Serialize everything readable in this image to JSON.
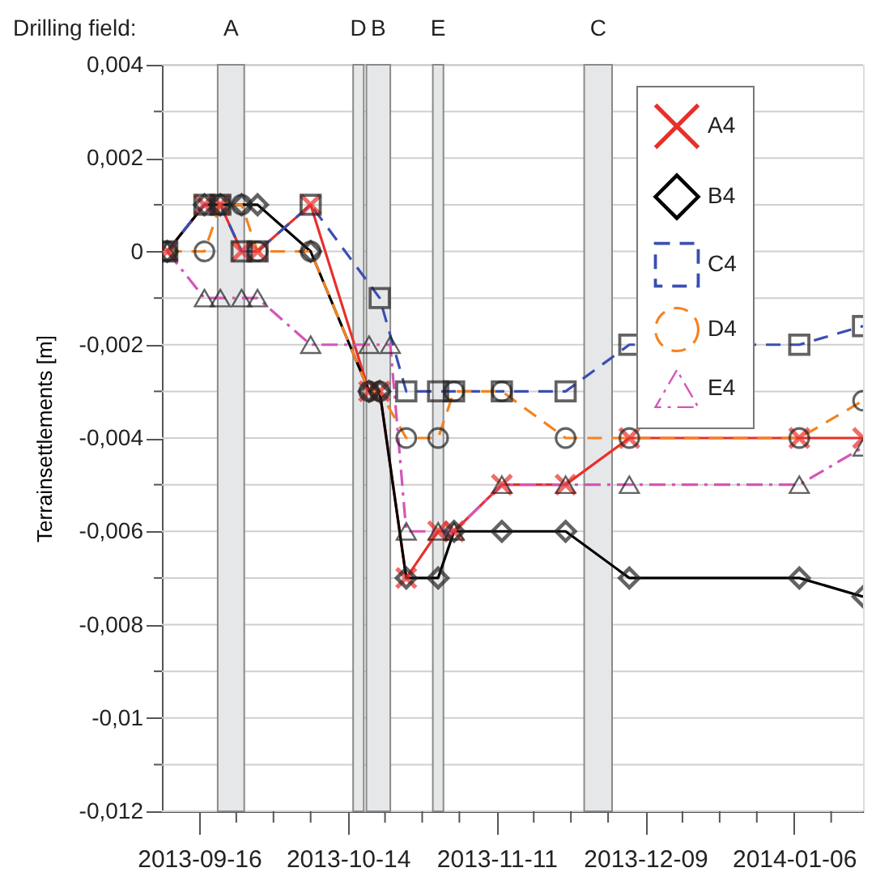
{
  "chart_data": {
    "type": "line",
    "ylabel": "Terrainsettlements [m]",
    "annotations": [
      "Drilling field:"
    ],
    "xlim": [
      "2013-09-09",
      "2014-01-19"
    ],
    "xticks": [
      {
        "value": "2013-09-16",
        "label": "2013-09-16"
      },
      {
        "value": "2013-09-23",
        "label": null
      },
      {
        "value": "2013-09-30",
        "label": null
      },
      {
        "value": "2013-10-07",
        "label": null
      },
      {
        "value": "2013-10-14",
        "label": "2013-10-14"
      },
      {
        "value": "2013-10-21",
        "label": null
      },
      {
        "value": "2013-10-28",
        "label": null
      },
      {
        "value": "2013-11-04",
        "label": null
      },
      {
        "value": "2013-11-11",
        "label": "2013-11-11"
      },
      {
        "value": "2013-11-18",
        "label": null
      },
      {
        "value": "2013-11-25",
        "label": null
      },
      {
        "value": "2013-12-02",
        "label": null
      },
      {
        "value": "2013-12-09",
        "label": "2013-12-09"
      },
      {
        "value": "2013-12-16",
        "label": null
      },
      {
        "value": "2013-12-23",
        "label": null
      },
      {
        "value": "2013-12-30",
        "label": null
      },
      {
        "value": "2014-01-06",
        "label": "2014-01-06"
      },
      {
        "value": "2014-01-13",
        "label": null
      }
    ],
    "ylim": [
      -0.012,
      0.004
    ],
    "yticks": [
      {
        "value": -0.012,
        "label": "-0,012"
      },
      {
        "value": -0.011,
        "label": null
      },
      {
        "value": -0.01,
        "label": "-0,01"
      },
      {
        "value": -0.009,
        "label": null
      },
      {
        "value": -0.008,
        "label": "-0,008"
      },
      {
        "value": -0.007,
        "label": null
      },
      {
        "value": -0.006,
        "label": "-0,006"
      },
      {
        "value": -0.005,
        "label": null
      },
      {
        "value": -0.004,
        "label": "-0,004"
      },
      {
        "value": -0.003,
        "label": null
      },
      {
        "value": -0.002,
        "label": "-0,002"
      },
      {
        "value": -0.001,
        "label": null
      },
      {
        "value": 0,
        "label": "0"
      },
      {
        "value": 0.001,
        "label": null
      },
      {
        "value": 0.002,
        "label": "0,002"
      },
      {
        "value": 0.003,
        "label": null
      },
      {
        "value": 0.004,
        "label": "0,004"
      }
    ],
    "grid": "y",
    "legend": "top right",
    "bands": [
      {
        "axis": "x",
        "from": "2013-09-19T12:00",
        "to": "2013-09-24T12:00",
        "label": "A",
        "color": "#e6e7e8"
      },
      {
        "axis": "x",
        "from": "2013-10-15",
        "to": "2013-10-17",
        "label": "D",
        "color": "#e6e7e8"
      },
      {
        "axis": "x",
        "from": "2013-10-17T12:00",
        "to": "2013-10-22",
        "label": "B",
        "color": "#e6e7e8"
      },
      {
        "axis": "x",
        "from": "2013-10-30",
        "to": "2013-11-01",
        "label": "E",
        "color": "#e6e7e8"
      },
      {
        "axis": "x",
        "from": "2013-11-27T12:00",
        "to": "2013-12-02T18:00",
        "label": "C",
        "color": "#e6e7e8"
      }
    ],
    "series": [
      {
        "name": "A4",
        "color": "#e8302a",
        "marker": "cross",
        "line_style": "solid",
        "x": [
          "2013-09-10",
          "2013-09-17",
          "2013-09-20",
          "2013-09-24",
          "2013-09-27",
          "2013-10-07",
          "2013-10-18",
          "2013-10-20",
          "2013-10-25",
          "2013-10-31",
          "2013-11-03",
          "2013-11-12",
          "2013-11-24",
          "2013-12-06",
          "2014-01-07",
          "2014-01-19"
        ],
        "values": [
          0,
          0.001,
          0.001,
          0,
          0,
          0.001,
          -0.003,
          -0.003,
          -0.007,
          -0.006,
          -0.006,
          -0.005,
          -0.005,
          -0.004,
          -0.004,
          -0.004
        ]
      },
      {
        "name": "B4",
        "color": "#000000",
        "marker": "diamond",
        "line_style": "solid",
        "x": [
          "2013-09-10",
          "2013-09-17",
          "2013-09-20",
          "2013-09-24",
          "2013-09-27",
          "2013-10-07",
          "2013-10-18",
          "2013-10-20",
          "2013-10-25",
          "2013-10-31",
          "2013-11-03",
          "2013-11-12",
          "2013-11-24",
          "2013-12-06",
          "2014-01-07",
          "2014-01-19"
        ],
        "values": [
          0,
          0.001,
          0.001,
          0.001,
          0.001,
          0,
          -0.003,
          -0.003,
          -0.007,
          -0.007,
          -0.006,
          -0.006,
          -0.006,
          -0.007,
          -0.007,
          -0.0074
        ]
      },
      {
        "name": "C4",
        "color": "#3a4fb0",
        "marker": "square",
        "line_style": "dashed",
        "x": [
          "2013-09-10",
          "2013-09-17",
          "2013-09-20",
          "2013-09-24",
          "2013-09-27",
          "2013-10-07",
          "2013-10-20",
          "2013-10-25",
          "2013-10-31",
          "2013-11-03",
          "2013-11-12",
          "2013-11-24",
          "2013-12-06",
          "2014-01-07",
          "2014-01-19"
        ],
        "values": [
          0,
          0.001,
          0.001,
          0,
          0,
          0.001,
          -0.001,
          -0.003,
          -0.003,
          -0.003,
          -0.003,
          -0.003,
          -0.002,
          -0.002,
          -0.0016
        ]
      },
      {
        "name": "D4",
        "color": "#f5821f",
        "marker": "circle",
        "line_style": "dashed",
        "x": [
          "2013-09-10",
          "2013-09-17",
          "2013-09-20",
          "2013-09-24",
          "2013-09-27",
          "2013-10-07",
          "2013-10-18",
          "2013-10-20",
          "2013-10-25",
          "2013-10-31",
          "2013-11-03",
          "2013-11-12",
          "2013-11-24",
          "2013-12-06",
          "2014-01-07",
          "2014-01-19"
        ],
        "values": [
          0,
          0,
          0.001,
          0.001,
          0,
          0,
          -0.003,
          -0.003,
          -0.004,
          -0.004,
          -0.003,
          -0.003,
          -0.004,
          -0.004,
          -0.004,
          -0.0032
        ]
      },
      {
        "name": "E4",
        "color": "#d456b8",
        "marker": "triangle",
        "line_style": "dotted",
        "x": [
          "2013-09-10",
          "2013-09-17",
          "2013-09-20",
          "2013-09-24",
          "2013-09-27",
          "2013-10-07",
          "2013-10-18",
          "2013-10-22",
          "2013-10-25",
          "2013-10-31",
          "2013-11-03",
          "2013-11-12",
          "2013-11-24",
          "2013-12-06",
          "2014-01-07",
          "2014-01-19"
        ],
        "values": [
          0,
          -0.001,
          -0.001,
          -0.001,
          -0.001,
          -0.002,
          -0.002,
          -0.002,
          -0.006,
          -0.006,
          -0.006,
          -0.005,
          -0.005,
          -0.005,
          -0.005,
          -0.0042
        ]
      }
    ]
  }
}
